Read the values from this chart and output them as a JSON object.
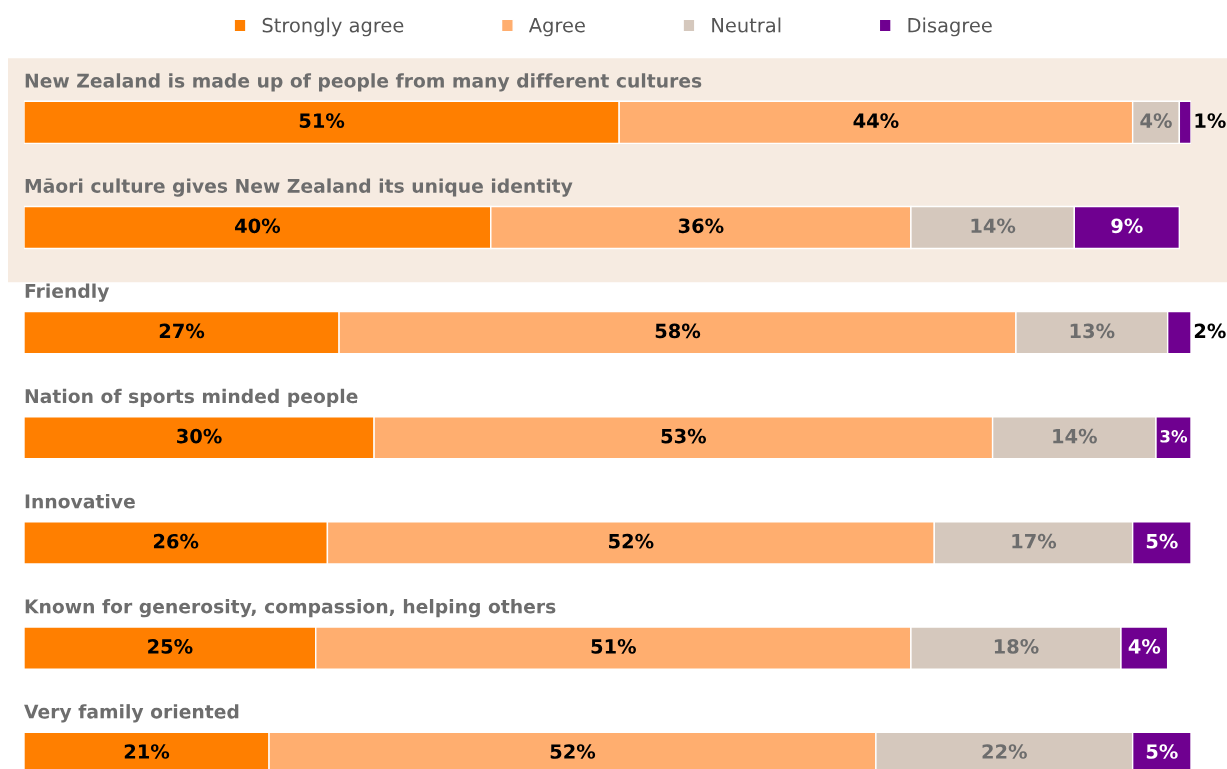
{
  "chart_data": {
    "type": "bar",
    "orientation": "horizontal",
    "stacked": true,
    "legend": "top",
    "categories": [
      "New Zealand is made up of people from many different cultures",
      "Māori culture gives New Zealand its unique identity",
      "Friendly",
      "Nation of sports minded people",
      "Innovative",
      "Known for generosity, compassion, helping others",
      "Very family oriented"
    ],
    "series": [
      {
        "name": "Strongly agree",
        "color": "#ff7f00",
        "values": [
          51,
          40,
          27,
          30,
          26,
          25,
          21
        ],
        "value_labels": [
          "51%",
          "40%",
          "27%",
          "30%",
          "26%",
          "25%",
          "21%"
        ]
      },
      {
        "name": "Agree",
        "color": "#ffae6f",
        "values": [
          44,
          36,
          58,
          53,
          52,
          51,
          52
        ],
        "value_labels": [
          "44%",
          "36%",
          "58%",
          "53%",
          "52%",
          "51%",
          "52%"
        ]
      },
      {
        "name": "Neutral",
        "color": "#d5c8bd",
        "values": [
          4,
          14,
          13,
          14,
          17,
          18,
          22
        ],
        "value_labels": [
          "4%",
          "14%",
          "13%",
          "14%",
          "17%",
          "18%",
          "22%"
        ]
      },
      {
        "name": "Disagree",
        "color": "#6f0090",
        "values": [
          1,
          9,
          2,
          3,
          5,
          4,
          5
        ],
        "value_labels": [
          "1%",
          "9%",
          "2%",
          "3%",
          "5%",
          "4%",
          "5%"
        ]
      }
    ],
    "bands": [
      {
        "axis": "y",
        "from": "New Zealand is made up of people from many different cultures",
        "to": "Māori culture gives New Zealand its unique identity",
        "color": "#f6ebe1"
      }
    ]
  }
}
